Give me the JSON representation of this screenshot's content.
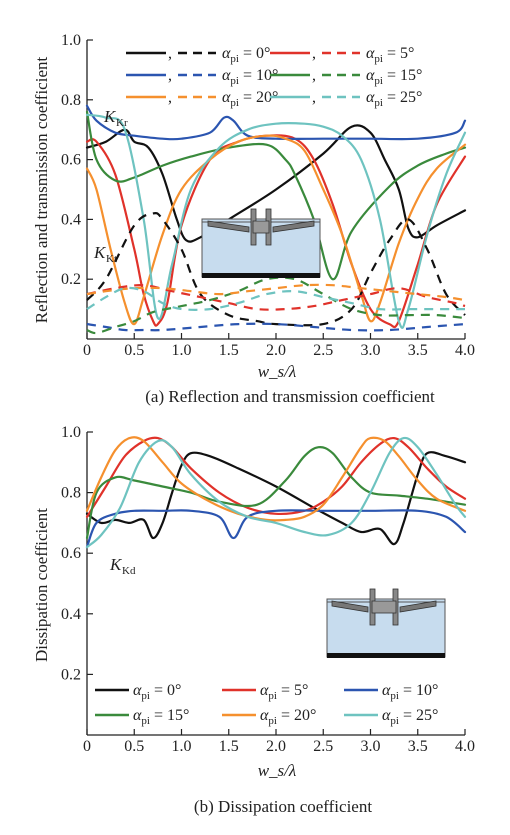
{
  "chart_data": [
    {
      "type": "line",
      "caption": "(a) Reflection and transmission coefficient",
      "xlabel": "w_s/λ",
      "ylabel": "Reflection and transmission coefficient",
      "xlim": [
        0,
        4
      ],
      "ylim": [
        0,
        1
      ],
      "xticks": [
        "0",
        "0.5",
        "1.0",
        "1.5",
        "2.0",
        "2.5",
        "3.0",
        "3.5",
        "4.0"
      ],
      "yticks": [
        "0.2",
        "0.4",
        "0.6",
        "0.8",
        "1.0"
      ],
      "annotations": [
        "Kr",
        "Kt"
      ],
      "legend_position": "top",
      "legend": [
        {
          "label": "α_pi = 0°",
          "color": "#111111"
        },
        {
          "label": "α_pi = 5°",
          "color": "#e0322a"
        },
        {
          "label": "α_pi = 10°",
          "color": "#2b55b0"
        },
        {
          "label": "α_pi = 15°",
          "color": "#3a8a3c"
        },
        {
          "label": "α_pi = 20°",
          "color": "#f5902e"
        },
        {
          "label": "α_pi = 25°",
          "color": "#6ec3c0"
        }
      ],
      "series": [
        {
          "group": "Kr",
          "angle": 0,
          "color": "#111111",
          "dash": false,
          "x": [
            0,
            0.2,
            0.4,
            0.5,
            0.65,
            0.8,
            0.95,
            1.05,
            1.2,
            1.5,
            2.0,
            2.5,
            2.8,
            3.0,
            3.15,
            3.3,
            3.4,
            3.5,
            3.7,
            4.0
          ],
          "y": [
            0.64,
            0.66,
            0.7,
            0.66,
            0.64,
            0.55,
            0.4,
            0.33,
            0.34,
            0.4,
            0.5,
            0.62,
            0.71,
            0.69,
            0.6,
            0.5,
            0.37,
            0.34,
            0.38,
            0.43
          ]
        },
        {
          "group": "Kr",
          "angle": 5,
          "color": "#e0322a",
          "dash": false,
          "x": [
            0,
            0.1,
            0.3,
            0.5,
            0.6,
            0.7,
            0.75,
            0.85,
            1.0,
            1.3,
            1.6,
            1.9,
            2.2,
            2.4,
            2.6,
            2.8,
            3.0,
            3.2,
            3.3,
            3.5,
            3.7,
            4.0
          ],
          "y": [
            0.66,
            0.66,
            0.55,
            0.3,
            0.15,
            0.06,
            0.05,
            0.12,
            0.38,
            0.6,
            0.66,
            0.68,
            0.67,
            0.6,
            0.45,
            0.25,
            0.1,
            0.05,
            0.06,
            0.25,
            0.45,
            0.61
          ]
        },
        {
          "group": "Kr",
          "angle": 10,
          "color": "#2b55b0",
          "dash": false,
          "x": [
            0,
            0.1,
            0.3,
            0.5,
            0.8,
            1.0,
            1.3,
            1.45,
            1.55,
            1.7,
            2.0,
            2.5,
            3.0,
            3.5,
            3.9,
            4.0
          ],
          "y": [
            0.78,
            0.73,
            0.69,
            0.68,
            0.67,
            0.67,
            0.69,
            0.74,
            0.73,
            0.68,
            0.67,
            0.67,
            0.67,
            0.67,
            0.69,
            0.73
          ]
        },
        {
          "group": "Kr",
          "angle": 15,
          "color": "#3a8a3c",
          "dash": false,
          "x": [
            0,
            0.1,
            0.3,
            0.5,
            0.8,
            1.1,
            1.5,
            1.9,
            2.1,
            2.2,
            2.4,
            2.6,
            2.8,
            3.2,
            3.5,
            3.8,
            4.0
          ],
          "y": [
            0.76,
            0.6,
            0.53,
            0.54,
            0.58,
            0.61,
            0.64,
            0.65,
            0.6,
            0.55,
            0.4,
            0.2,
            0.36,
            0.51,
            0.58,
            0.62,
            0.64
          ]
        },
        {
          "group": "Kr",
          "angle": 20,
          "color": "#f5902e",
          "dash": false,
          "x": [
            0,
            0.1,
            0.25,
            0.4,
            0.5,
            0.6,
            0.8,
            1.0,
            1.3,
            1.6,
            1.9,
            2.1,
            2.3,
            2.5,
            2.7,
            2.9,
            3.0,
            3.1,
            3.3,
            3.5,
            3.7,
            4.0
          ],
          "y": [
            0.57,
            0.5,
            0.3,
            0.12,
            0.05,
            0.14,
            0.35,
            0.5,
            0.6,
            0.66,
            0.68,
            0.67,
            0.63,
            0.5,
            0.35,
            0.15,
            0.06,
            0.12,
            0.32,
            0.47,
            0.57,
            0.65
          ]
        },
        {
          "group": "Kr",
          "angle": 25,
          "color": "#6ec3c0",
          "dash": false,
          "x": [
            0,
            0.2,
            0.4,
            0.6,
            0.75,
            0.9,
            1.1,
            1.4,
            1.7,
            2.0,
            2.3,
            2.5,
            2.7,
            2.9,
            3.1,
            3.3,
            3.4,
            3.6,
            3.8,
            4.0
          ],
          "y": [
            0.75,
            0.74,
            0.7,
            0.4,
            0.07,
            0.25,
            0.5,
            0.64,
            0.7,
            0.72,
            0.72,
            0.71,
            0.68,
            0.6,
            0.4,
            0.06,
            0.1,
            0.35,
            0.55,
            0.69
          ]
        },
        {
          "group": "Kt",
          "angle": 0,
          "color": "#111111",
          "dash": true,
          "x": [
            0,
            0.2,
            0.5,
            0.7,
            0.8,
            1.0,
            1.2,
            1.5,
            1.8,
            2.0,
            2.5,
            2.8,
            3.0,
            3.2,
            3.4,
            3.6,
            3.8,
            4.0
          ],
          "y": [
            0.13,
            0.2,
            0.38,
            0.42,
            0.4,
            0.3,
            0.15,
            0.08,
            0.06,
            0.05,
            0.05,
            0.1,
            0.22,
            0.33,
            0.4,
            0.3,
            0.15,
            0.08
          ]
        },
        {
          "group": "Kt",
          "angle": 5,
          "color": "#e0322a",
          "dash": true,
          "x": [
            0,
            0.3,
            0.6,
            0.9,
            1.2,
            1.5,
            1.8,
            2.1,
            2.4,
            2.7,
            3.0,
            3.3,
            3.6,
            3.9,
            4.0
          ],
          "y": [
            0.15,
            0.17,
            0.18,
            0.16,
            0.14,
            0.12,
            0.1,
            0.1,
            0.11,
            0.13,
            0.15,
            0.17,
            0.14,
            0.12,
            0.11
          ]
        },
        {
          "group": "Kt",
          "angle": 10,
          "color": "#2b55b0",
          "dash": true,
          "x": [
            0,
            0.2,
            0.4,
            0.6,
            0.8,
            1.2,
            1.6,
            2.0,
            2.4,
            2.8,
            3.2,
            3.6,
            4.0
          ],
          "y": [
            0.05,
            0.04,
            0.03,
            0.03,
            0.03,
            0.04,
            0.05,
            0.05,
            0.04,
            0.03,
            0.03,
            0.04,
            0.05
          ]
        },
        {
          "group": "Kt",
          "angle": 15,
          "color": "#3a8a3c",
          "dash": true,
          "x": [
            0,
            0.1,
            0.3,
            0.5,
            0.7,
            1.0,
            1.3,
            1.6,
            1.9,
            2.2,
            2.5,
            2.8,
            3.1,
            3.4,
            3.7,
            4.0
          ],
          "y": [
            0.03,
            0.02,
            0.04,
            0.06,
            0.09,
            0.11,
            0.13,
            0.16,
            0.2,
            0.2,
            0.15,
            0.1,
            0.08,
            0.08,
            0.08,
            0.07
          ]
        },
        {
          "group": "Kt",
          "angle": 20,
          "color": "#f5902e",
          "dash": true,
          "x": [
            0,
            0.2,
            0.5,
            0.8,
            1.1,
            1.4,
            1.7,
            2.0,
            2.3,
            2.6,
            2.9,
            3.2,
            3.5,
            3.8,
            4.0
          ],
          "y": [
            0.15,
            0.16,
            0.17,
            0.17,
            0.16,
            0.15,
            0.16,
            0.17,
            0.18,
            0.18,
            0.17,
            0.16,
            0.15,
            0.14,
            0.13
          ]
        },
        {
          "group": "Kt",
          "angle": 25,
          "color": "#6ec3c0",
          "dash": true,
          "x": [
            0,
            0.2,
            0.4,
            0.6,
            0.8,
            1.0,
            1.3,
            1.6,
            1.9,
            2.2,
            2.5,
            2.8,
            3.1,
            3.4,
            3.7,
            4.0
          ],
          "y": [
            0.1,
            0.14,
            0.17,
            0.16,
            0.12,
            0.1,
            0.1,
            0.12,
            0.15,
            0.16,
            0.14,
            0.12,
            0.1,
            0.1,
            0.1,
            0.1
          ]
        }
      ]
    },
    {
      "type": "line",
      "caption": "(b) Dissipation coefficient",
      "xlabel": "w_s/λ",
      "ylabel": "Dissipation coefficient",
      "xlim": [
        0,
        4
      ],
      "ylim": [
        0,
        1
      ],
      "xticks": [
        "0",
        "0.5",
        "1.0",
        "1.5",
        "2.0",
        "2.5",
        "3.0",
        "3.5",
        "4.0"
      ],
      "yticks": [
        "0.2",
        "0.4",
        "0.6",
        "0.8",
        "1.0"
      ],
      "annotations": [
        "Kd"
      ],
      "legend_position": "bottom",
      "legend": [
        {
          "label": "α_pi = 0°",
          "color": "#111111"
        },
        {
          "label": "α_pi = 5°",
          "color": "#e0322a"
        },
        {
          "label": "α_pi = 10°",
          "color": "#2b55b0"
        },
        {
          "label": "α_pi = 15°",
          "color": "#3a8a3c"
        },
        {
          "label": "α_pi = 20°",
          "color": "#f5902e"
        },
        {
          "label": "α_pi = 25°",
          "color": "#6ec3c0"
        }
      ],
      "series": [
        {
          "angle": 0,
          "color": "#111111",
          "dash": false,
          "x": [
            0,
            0.15,
            0.3,
            0.45,
            0.6,
            0.7,
            0.8,
            0.9,
            1.0,
            1.1,
            1.3,
            1.6,
            2.0,
            2.4,
            2.7,
            2.9,
            3.1,
            3.25,
            3.35,
            3.5,
            3.6,
            3.8,
            4.0
          ],
          "y": [
            0.73,
            0.7,
            0.71,
            0.7,
            0.71,
            0.65,
            0.7,
            0.8,
            0.89,
            0.93,
            0.92,
            0.88,
            0.82,
            0.75,
            0.7,
            0.67,
            0.68,
            0.63,
            0.7,
            0.86,
            0.93,
            0.92,
            0.9
          ]
        },
        {
          "angle": 5,
          "color": "#e0322a",
          "dash": false,
          "x": [
            0,
            0.2,
            0.4,
            0.6,
            0.75,
            0.9,
            1.1,
            1.4,
            1.7,
            2.0,
            2.3,
            2.5,
            2.7,
            2.9,
            3.1,
            3.25,
            3.4,
            3.6,
            3.8,
            4.0
          ],
          "y": [
            0.72,
            0.82,
            0.92,
            0.97,
            0.98,
            0.95,
            0.88,
            0.8,
            0.75,
            0.73,
            0.74,
            0.77,
            0.82,
            0.9,
            0.96,
            0.98,
            0.95,
            0.88,
            0.82,
            0.78
          ]
        },
        {
          "angle": 10,
          "color": "#2b55b0",
          "dash": false,
          "x": [
            0,
            0.1,
            0.3,
            0.5,
            0.8,
            1.1,
            1.4,
            1.55,
            1.7,
            2.0,
            2.5,
            3.0,
            3.5,
            3.8,
            4.0
          ],
          "y": [
            0.62,
            0.7,
            0.73,
            0.74,
            0.74,
            0.74,
            0.72,
            0.65,
            0.72,
            0.74,
            0.74,
            0.74,
            0.74,
            0.72,
            0.67
          ]
        },
        {
          "angle": 15,
          "color": "#3a8a3c",
          "dash": false,
          "x": [
            0,
            0.1,
            0.3,
            0.5,
            0.8,
            1.1,
            1.4,
            1.8,
            2.1,
            2.3,
            2.45,
            2.6,
            2.8,
            3.0,
            3.3,
            3.6,
            3.8,
            4.0
          ],
          "y": [
            0.65,
            0.8,
            0.85,
            0.84,
            0.82,
            0.8,
            0.77,
            0.76,
            0.84,
            0.92,
            0.95,
            0.93,
            0.85,
            0.8,
            0.79,
            0.78,
            0.77,
            0.76
          ]
        },
        {
          "angle": 20,
          "color": "#f5902e",
          "dash": false,
          "x": [
            0,
            0.15,
            0.3,
            0.45,
            0.6,
            0.8,
            1.0,
            1.3,
            1.6,
            1.9,
            2.1,
            2.3,
            2.5,
            2.7,
            2.9,
            3.0,
            3.15,
            3.3,
            3.5,
            3.7,
            4.0
          ],
          "y": [
            0.74,
            0.85,
            0.94,
            0.98,
            0.97,
            0.9,
            0.83,
            0.77,
            0.73,
            0.71,
            0.71,
            0.72,
            0.76,
            0.85,
            0.95,
            0.98,
            0.97,
            0.92,
            0.84,
            0.78,
            0.74
          ]
        },
        {
          "angle": 25,
          "color": "#6ec3c0",
          "dash": false,
          "x": [
            0,
            0.15,
            0.35,
            0.55,
            0.75,
            0.9,
            1.1,
            1.4,
            1.7,
            2.0,
            2.3,
            2.55,
            2.8,
            3.0,
            3.2,
            3.35,
            3.5,
            3.7,
            3.9,
            4.0
          ],
          "y": [
            0.62,
            0.66,
            0.75,
            0.9,
            0.97,
            0.95,
            0.86,
            0.77,
            0.72,
            0.7,
            0.67,
            0.66,
            0.7,
            0.8,
            0.93,
            0.98,
            0.95,
            0.86,
            0.76,
            0.72
          ]
        }
      ]
    }
  ]
}
